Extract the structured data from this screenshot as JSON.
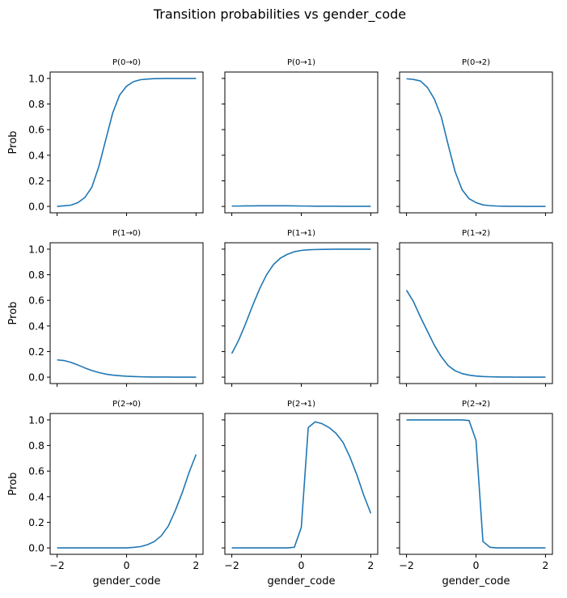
{
  "figure": {
    "title": "Transition probabilities vs gender_code"
  },
  "chart_data": {
    "type": "line",
    "title": "Transition probabilities vs gender_code",
    "xlim": [
      -2.2,
      2.2
    ],
    "ylim": [
      -0.05,
      1.05
    ],
    "xticks": [
      -2,
      0,
      2
    ],
    "xtick_labels": [
      "−2",
      "0",
      "2"
    ],
    "yticks": [
      0.0,
      0.2,
      0.4,
      0.6,
      0.8,
      1.0
    ],
    "ytick_labels": [
      "0.0",
      "0.2",
      "0.4",
      "0.6",
      "0.8",
      "1.0"
    ],
    "xlabel": "gender_code",
    "ylabel": "Prob",
    "grid": false,
    "x": [
      -2.0,
      -1.8,
      -1.6,
      -1.4,
      -1.2,
      -1.0,
      -0.8,
      -0.6,
      -0.4,
      -0.2,
      0.0,
      0.2,
      0.4,
      0.6,
      0.8,
      1.0,
      1.2,
      1.4,
      1.6,
      1.8,
      2.0
    ],
    "panels": [
      {
        "title": "P(0→0)",
        "values": [
          0.0,
          0.005,
          0.01,
          0.03,
          0.07,
          0.15,
          0.31,
          0.52,
          0.73,
          0.87,
          0.94,
          0.975,
          0.99,
          0.995,
          0.998,
          0.999,
          1.0,
          1.0,
          1.0,
          1.0,
          1.0
        ]
      },
      {
        "title": "P(0→1)",
        "values": [
          0.003,
          0.003,
          0.004,
          0.004,
          0.005,
          0.005,
          0.005,
          0.005,
          0.005,
          0.004,
          0.003,
          0.003,
          0.002,
          0.002,
          0.002,
          0.002,
          0.001,
          0.001,
          0.001,
          0.001,
          0.001
        ]
      },
      {
        "title": "P(0→2)",
        "values": [
          0.997,
          0.992,
          0.98,
          0.93,
          0.84,
          0.7,
          0.48,
          0.27,
          0.13,
          0.06,
          0.03,
          0.012,
          0.006,
          0.003,
          0.002,
          0.001,
          0.001,
          0.0,
          0.0,
          0.0,
          0.0
        ]
      },
      {
        "title": "P(1→0)",
        "values": [
          0.135,
          0.13,
          0.115,
          0.095,
          0.072,
          0.052,
          0.036,
          0.024,
          0.016,
          0.011,
          0.007,
          0.005,
          0.003,
          0.002,
          0.001,
          0.001,
          0.001,
          0.0,
          0.0,
          0.0,
          0.0
        ]
      },
      {
        "title": "P(1→1)",
        "values": [
          0.185,
          0.29,
          0.42,
          0.56,
          0.69,
          0.8,
          0.88,
          0.93,
          0.96,
          0.98,
          0.99,
          0.995,
          0.997,
          0.998,
          0.999,
          1.0,
          1.0,
          1.0,
          1.0,
          1.0,
          1.0
        ]
      },
      {
        "title": "P(1→2)",
        "values": [
          0.68,
          0.59,
          0.47,
          0.36,
          0.25,
          0.16,
          0.09,
          0.05,
          0.028,
          0.016,
          0.009,
          0.005,
          0.003,
          0.002,
          0.001,
          0.001,
          0.0,
          0.0,
          0.0,
          0.0,
          0.0
        ]
      },
      {
        "title": "P(2→0)",
        "values": [
          0.0,
          0.0,
          0.0,
          0.0,
          0.0,
          0.0,
          0.0,
          0.0,
          0.0,
          0.0,
          0.0,
          0.004,
          0.01,
          0.025,
          0.05,
          0.095,
          0.17,
          0.29,
          0.43,
          0.59,
          0.73
        ]
      },
      {
        "title": "P(2→1)",
        "values": [
          0.0,
          0.0,
          0.0,
          0.0,
          0.0,
          0.0,
          0.0,
          0.0,
          0.0,
          0.005,
          0.16,
          0.94,
          0.985,
          0.97,
          0.94,
          0.895,
          0.825,
          0.71,
          0.57,
          0.41,
          0.27
        ]
      },
      {
        "title": "P(2→2)",
        "values": [
          1.0,
          1.0,
          1.0,
          1.0,
          1.0,
          1.0,
          1.0,
          1.0,
          1.0,
          0.995,
          0.84,
          0.05,
          0.005,
          0.0,
          0.0,
          0.0,
          0.0,
          0.0,
          0.0,
          0.0,
          0.0
        ]
      }
    ]
  }
}
